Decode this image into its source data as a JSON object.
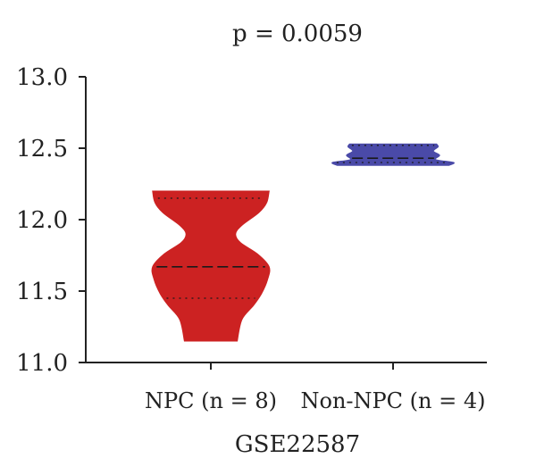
{
  "chart_data": {
    "type": "violin",
    "title": "p = 0.0059",
    "xlabel": "GSE22587",
    "ylabel": "",
    "ylim": [
      11.0,
      13.0
    ],
    "yticks": [
      11.0,
      11.5,
      12.0,
      12.5,
      13.0
    ],
    "ytick_labels": [
      "11.0",
      "11.5",
      "12.0",
      "12.5",
      "13.0"
    ],
    "categories": [
      "NPC (n = 8)",
      "Non-NPC (n = 4)"
    ],
    "series": [
      {
        "category": "NPC (n = 8)",
        "color": "#cc2222",
        "min": 11.15,
        "max": 12.2,
        "median": 11.67,
        "q1": 11.45,
        "q3": 12.15,
        "density": [
          [
            11.15,
            0.34
          ],
          [
            11.3,
            0.4
          ],
          [
            11.4,
            0.55
          ],
          [
            11.48,
            0.65
          ],
          [
            11.58,
            0.73
          ],
          [
            11.67,
            0.75
          ],
          [
            11.76,
            0.6
          ],
          [
            11.84,
            0.38
          ],
          [
            11.9,
            0.32
          ],
          [
            11.96,
            0.4
          ],
          [
            12.05,
            0.62
          ],
          [
            12.12,
            0.72
          ],
          [
            12.2,
            0.75
          ]
        ]
      },
      {
        "category": "Non-NPC (n = 4)",
        "color": "#4a4aa8",
        "min": 12.38,
        "max": 12.53,
        "median": 12.43,
        "q1": 12.4,
        "q3": 12.52,
        "density": [
          [
            12.38,
            0.72
          ],
          [
            12.4,
            0.78
          ],
          [
            12.42,
            0.55
          ],
          [
            12.45,
            0.6
          ],
          [
            12.48,
            0.52
          ],
          [
            12.51,
            0.58
          ],
          [
            12.53,
            0.56
          ]
        ]
      }
    ]
  }
}
